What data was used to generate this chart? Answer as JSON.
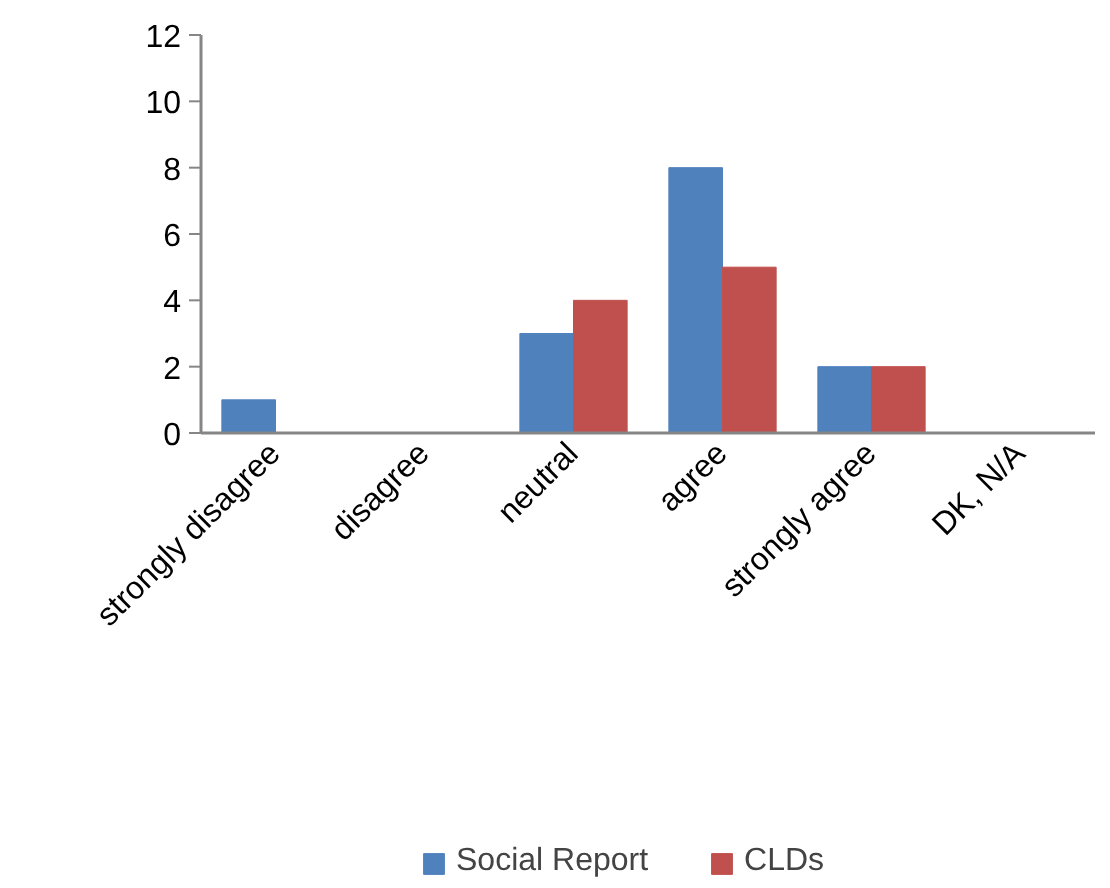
{
  "chart_data": {
    "type": "bar",
    "categories": [
      "strongly disagree",
      "disagree",
      "neutral",
      "agree",
      "strongly agree",
      "DK, N/A"
    ],
    "series": [
      {
        "name": "Social Report",
        "color": "#4f81bd",
        "values": [
          1,
          0,
          3,
          8,
          2,
          0
        ]
      },
      {
        "name": "CLDs",
        "color": "#c0504d",
        "values": [
          0,
          0,
          4,
          5,
          2,
          0
        ]
      }
    ],
    "ylim": [
      0,
      12
    ],
    "yticks": [
      0,
      2,
      4,
      6,
      8,
      10,
      12
    ],
    "grid": false,
    "legend": "bottom"
  }
}
